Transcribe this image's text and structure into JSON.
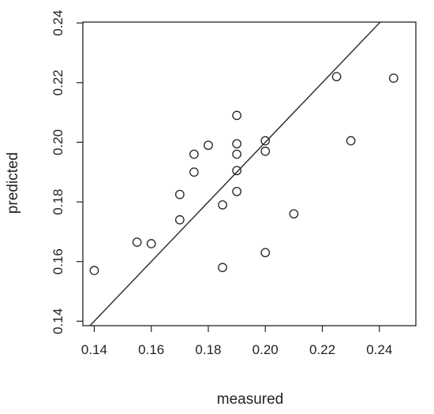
{
  "chart_data": {
    "type": "scatter",
    "title": "",
    "xlabel": "measured",
    "ylabel": "predicted",
    "xlim": [
      0.136,
      0.2528
    ],
    "ylim": [
      0.1385,
      0.2403
    ],
    "xticks": [
      "0.14",
      "0.16",
      "0.18",
      "0.20",
      "0.22",
      "0.24"
    ],
    "yticks": [
      "0.14",
      "0.16",
      "0.18",
      "0.20",
      "0.22",
      "0.24"
    ],
    "grid": false,
    "reference_line": {
      "type": "identity",
      "slope": 1,
      "intercept": 0
    },
    "points": [
      {
        "x": 0.14,
        "y": 0.157
      },
      {
        "x": 0.155,
        "y": 0.1665
      },
      {
        "x": 0.16,
        "y": 0.166
      },
      {
        "x": 0.17,
        "y": 0.174
      },
      {
        "x": 0.17,
        "y": 0.1825
      },
      {
        "x": 0.175,
        "y": 0.196
      },
      {
        "x": 0.175,
        "y": 0.19
      },
      {
        "x": 0.18,
        "y": 0.199
      },
      {
        "x": 0.185,
        "y": 0.179
      },
      {
        "x": 0.185,
        "y": 0.158
      },
      {
        "x": 0.19,
        "y": 0.209
      },
      {
        "x": 0.19,
        "y": 0.1995
      },
      {
        "x": 0.19,
        "y": 0.196
      },
      {
        "x": 0.19,
        "y": 0.1905
      },
      {
        "x": 0.19,
        "y": 0.1835
      },
      {
        "x": 0.2,
        "y": 0.2005
      },
      {
        "x": 0.2,
        "y": 0.197
      },
      {
        "x": 0.2,
        "y": 0.163
      },
      {
        "x": 0.21,
        "y": 0.176
      },
      {
        "x": 0.225,
        "y": 0.222
      },
      {
        "x": 0.23,
        "y": 0.2005
      },
      {
        "x": 0.245,
        "y": 0.2215
      }
    ],
    "marker": "open-circle",
    "colors": {
      "axis": "#222222",
      "marker": "#222222",
      "line": "#333333"
    }
  }
}
